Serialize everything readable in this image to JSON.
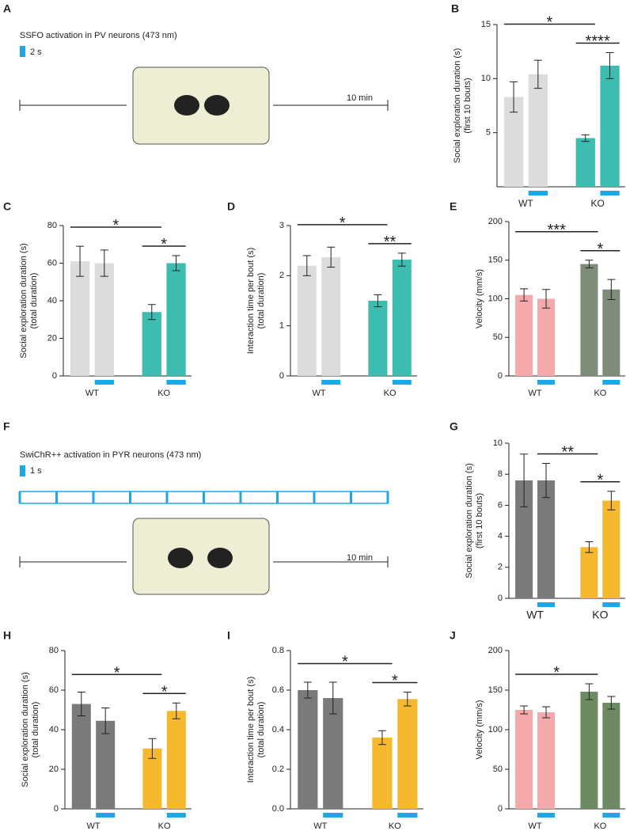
{
  "schematics": [
    {
      "panel": "A",
      "title": "SSFO activation in PV neurons (473 nm)",
      "pulse_label": "2 s",
      "duration_label": "10 min"
    },
    {
      "panel": "F",
      "title": "SwiChR++ activation in PYR neurons (473 nm)",
      "pulse_label": "1 s",
      "duration_label": "10 min"
    }
  ],
  "chart_data": [
    {
      "type": "bar",
      "panel": "B",
      "ylabel": [
        "Social exploration duration (s)",
        "(first 10 bouts)"
      ],
      "groups": [
        "WT",
        "KO"
      ],
      "values": [
        8.3,
        10.4,
        4.5,
        11.2
      ],
      "errors": [
        1.4,
        1.3,
        0.3,
        1.2
      ],
      "colors": [
        "#dcdcdc",
        "#dcdcdc",
        "#3dbcb0",
        "#3dbcb0"
      ],
      "light": [
        false,
        true,
        false,
        true
      ],
      "light_color": "#1ea7e6",
      "ylim": [
        0,
        15
      ],
      "yticks": [
        5,
        10,
        15
      ],
      "annotations": [
        {
          "text": "****",
          "from": 2,
          "to": 3
        },
        {
          "text": "*",
          "from": 0,
          "to": 2
        }
      ]
    },
    {
      "type": "bar",
      "panel": "C",
      "ylabel": [
        "Social exploration duration (s)",
        "(total duration)"
      ],
      "groups": [
        "WT",
        "KO"
      ],
      "values": [
        61,
        60,
        34,
        60
      ],
      "errors": [
        8,
        7,
        4,
        4
      ],
      "colors": [
        "#dcdcdc",
        "#dcdcdc",
        "#3dbcb0",
        "#3dbcb0"
      ],
      "light": [
        false,
        true,
        false,
        true
      ],
      "light_color": "#1ea7e6",
      "ylim": [
        0,
        80
      ],
      "yticks": [
        0,
        20,
        40,
        60,
        80
      ],
      "annotations": [
        {
          "text": "*",
          "from": 2,
          "to": 3
        },
        {
          "text": "*",
          "from": 0,
          "to": 2
        }
      ]
    },
    {
      "type": "bar",
      "panel": "D",
      "ylabel": [
        "Interaction time per bout (s)",
        "(total duration)"
      ],
      "groups": [
        "WT",
        "KO"
      ],
      "values": [
        2.2,
        2.37,
        1.5,
        2.32
      ],
      "errors": [
        0.2,
        0.2,
        0.12,
        0.13
      ],
      "colors": [
        "#dcdcdc",
        "#dcdcdc",
        "#3dbcb0",
        "#3dbcb0"
      ],
      "light": [
        false,
        true,
        false,
        true
      ],
      "light_color": "#1ea7e6",
      "ylim": [
        0,
        3
      ],
      "yticks": [
        0,
        1,
        2,
        3
      ],
      "annotations": [
        {
          "text": "**",
          "from": 2,
          "to": 3
        },
        {
          "text": "*",
          "from": 0,
          "to": 2
        }
      ]
    },
    {
      "type": "bar",
      "panel": "E",
      "ylabel": [
        "Velocity (mm/s)"
      ],
      "groups": [
        "WT",
        "KO"
      ],
      "values": [
        105,
        100,
        145,
        112
      ],
      "errors": [
        8,
        12,
        5,
        13
      ],
      "colors": [
        "#f4a9ab",
        "#f4a9ab",
        "#7f8c7a",
        "#7f8c7a"
      ],
      "light": [
        false,
        true,
        false,
        true
      ],
      "light_color": "#1ea7e6",
      "ylim": [
        0,
        200
      ],
      "yticks": [
        0,
        50,
        100,
        150,
        200
      ],
      "annotations": [
        {
          "text": "*",
          "from": 2,
          "to": 3
        },
        {
          "text": "***",
          "from": 0,
          "to": 2
        }
      ]
    },
    {
      "type": "bar",
      "panel": "G",
      "ylabel": [
        "Social exploration duration (s)",
        "(first 10 bouts)"
      ],
      "groups": [
        "WT",
        "KO"
      ],
      "values": [
        7.6,
        7.6,
        3.3,
        6.3
      ],
      "errors": [
        1.7,
        1.1,
        0.35,
        0.6
      ],
      "colors": [
        "#7a7a7a",
        "#7a7a7a",
        "#f5b82e",
        "#f5b82e"
      ],
      "light": [
        false,
        true,
        false,
        true
      ],
      "light_color": "#1ea7e6",
      "ylim": [
        0,
        10
      ],
      "yticks": [
        0,
        2,
        4,
        6,
        8,
        10
      ],
      "annotations": [
        {
          "text": "*",
          "from": 2,
          "to": 3
        },
        {
          "text": "**",
          "from": 1,
          "to": 2
        }
      ]
    },
    {
      "type": "bar",
      "panel": "H",
      "ylabel": [
        "Social exploration duration (s)",
        "(total duration)"
      ],
      "groups": [
        "WT",
        "KO"
      ],
      "values": [
        53,
        44.5,
        30.5,
        49.5
      ],
      "errors": [
        6,
        6.5,
        5,
        4
      ],
      "colors": [
        "#7a7a7a",
        "#7a7a7a",
        "#f5b82e",
        "#f5b82e"
      ],
      "light": [
        false,
        true,
        false,
        true
      ],
      "light_color": "#1ea7e6",
      "ylim": [
        0,
        80
      ],
      "yticks": [
        0,
        20,
        40,
        60,
        80
      ],
      "annotations": [
        {
          "text": "*",
          "from": 2,
          "to": 3
        },
        {
          "text": "*",
          "from": 0,
          "to": 2
        }
      ]
    },
    {
      "type": "bar",
      "panel": "I",
      "ylabel": [
        "Interaction time per bout (s)",
        "(total duration)"
      ],
      "groups": [
        "WT",
        "KO"
      ],
      "values": [
        0.6,
        0.56,
        0.36,
        0.555
      ],
      "errors": [
        0.04,
        0.08,
        0.035,
        0.035
      ],
      "colors": [
        "#7a7a7a",
        "#7a7a7a",
        "#f5b82e",
        "#f5b82e"
      ],
      "light": [
        false,
        true,
        false,
        true
      ],
      "light_color": "#1ea7e6",
      "ylim": [
        0,
        0.8
      ],
      "yticks": [
        {
          "value": 0,
          "label": "0.0"
        },
        0.2,
        0.4,
        0.6,
        0.8
      ],
      "annotations": [
        {
          "text": "*",
          "from": 2,
          "to": 3
        },
        {
          "text": "*",
          "from": 0,
          "to": 2
        }
      ]
    },
    {
      "type": "bar",
      "panel": "J",
      "ylabel": [
        "Velocity (mm/s)"
      ],
      "groups": [
        "WT",
        "KO"
      ],
      "values": [
        125,
        122,
        148,
        134
      ],
      "errors": [
        5,
        7,
        10,
        8
      ],
      "colors": [
        "#f4a9ab",
        "#f4a9ab",
        "#6e8a63",
        "#6e8a63"
      ],
      "light": [
        false,
        true,
        false,
        true
      ],
      "light_color": "#1ea7e6",
      "ylim": [
        0,
        200
      ],
      "yticks": [
        0,
        50,
        100,
        150,
        200
      ],
      "annotations": [
        {
          "text": "*",
          "from": 0,
          "to": 2
        }
      ]
    }
  ]
}
